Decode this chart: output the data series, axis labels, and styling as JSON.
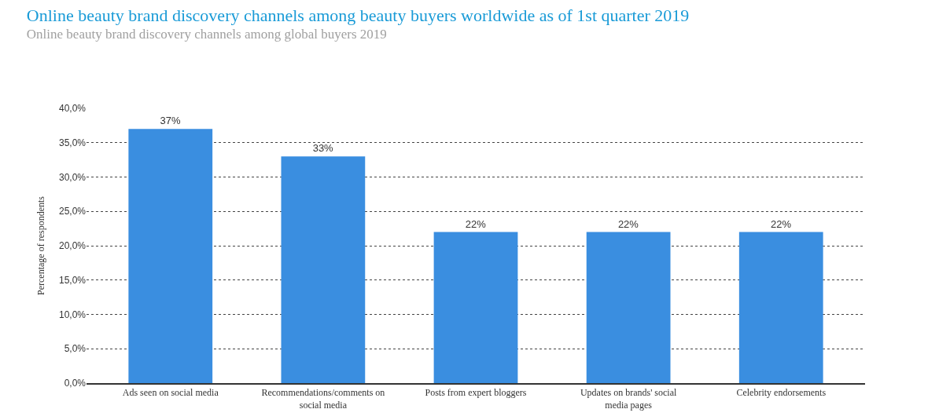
{
  "chart_data": {
    "type": "bar",
    "title": "Online beauty brand discovery channels among beauty buyers worldwide as of 1st quarter 2019",
    "subtitle": "Online beauty brand discovery channels among global buyers 2019",
    "ylabel": "Percentage of respondents",
    "categories": [
      "Ads seen on social media",
      "Recommendations/comments on social media",
      "Posts from expert bloggers",
      "Updates on brands' social media pages",
      "Celebrity endorsements"
    ],
    "values": [
      37,
      33,
      22,
      22,
      22
    ],
    "value_labels": [
      "37%",
      "33%",
      "22%",
      "22%",
      "22%"
    ],
    "color": "#3a8ee0",
    "ylim": [
      0,
      40
    ],
    "yticks": [
      {
        "value": 0,
        "label": "0,0%"
      },
      {
        "value": 5,
        "label": "5,0%"
      },
      {
        "value": 10,
        "label": "10,0%"
      },
      {
        "value": 15,
        "label": "15,0%"
      },
      {
        "value": 20,
        "label": "20,0%"
      },
      {
        "value": 25,
        "label": "25,0%"
      },
      {
        "value": 30,
        "label": "30,0%"
      },
      {
        "value": 35,
        "label": "35,0%"
      },
      {
        "value": 40,
        "label": "40,0%"
      }
    ],
    "grid": "y",
    "line_style": "dotted"
  }
}
